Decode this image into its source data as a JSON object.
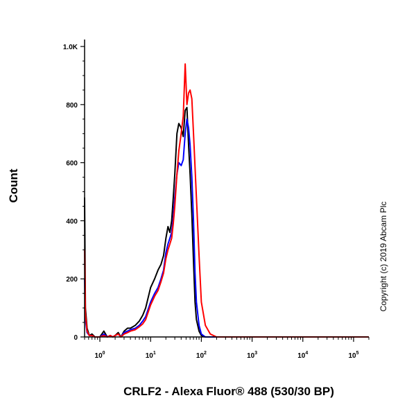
{
  "chart_data": {
    "type": "line",
    "title": "",
    "xlabel": "CRLF2 - Alexa Fluor® 488 (530/30 BP)",
    "ylabel": "Count",
    "xscale": "log",
    "xlim": [
      0.5,
      200000
    ],
    "ylim": [
      0,
      1024
    ],
    "grid": false,
    "legend": "none",
    "y_ticks": [
      {
        "value": 0,
        "label": "0"
      },
      {
        "value": 200,
        "label": "200"
      },
      {
        "value": 400,
        "label": "400"
      },
      {
        "value": 600,
        "label": "600"
      },
      {
        "value": 800,
        "label": "800"
      },
      {
        "value": 1000,
        "label": "1.0K"
      }
    ],
    "x_ticks": [
      {
        "value": 1,
        "base": "10",
        "exp": "0"
      },
      {
        "value": 10,
        "base": "10",
        "exp": "1"
      },
      {
        "value": 100,
        "base": "10",
        "exp": "2"
      },
      {
        "value": 1000,
        "base": "10",
        "exp": "3"
      },
      {
        "value": 10000,
        "base": "10",
        "exp": "4"
      },
      {
        "value": 100000,
        "base": "10",
        "exp": "5"
      }
    ],
    "series": [
      {
        "color": "#000000",
        "x": [
          0.5,
          0.52,
          0.56,
          0.62,
          0.7,
          0.8,
          0.9,
          1.0,
          1.2,
          1.4,
          1.6,
          1.8,
          2.0,
          2.3,
          2.6,
          3.0,
          3.5,
          4.0,
          5.0,
          6.0,
          7.0,
          8.0,
          10,
          12,
          14,
          16,
          18,
          20,
          22,
          24,
          26,
          28,
          30,
          33,
          36,
          40,
          44,
          48,
          52,
          56,
          60,
          65,
          70,
          75,
          80,
          90,
          100,
          120,
          150,
          1000,
          200000
        ],
        "y": [
          480,
          100,
          30,
          5,
          10,
          0,
          0,
          0,
          20,
          0,
          5,
          0,
          5,
          15,
          0,
          20,
          30,
          30,
          40,
          55,
          75,
          100,
          170,
          200,
          230,
          250,
          280,
          340,
          380,
          360,
          400,
          480,
          560,
          700,
          735,
          720,
          690,
          780,
          790,
          660,
          560,
          420,
          260,
          120,
          60,
          20,
          5,
          0,
          0,
          0,
          0
        ]
      },
      {
        "color": "#0000ff",
        "x": [
          0.5,
          0.52,
          0.56,
          0.62,
          0.7,
          0.8,
          0.9,
          1.0,
          1.2,
          1.4,
          1.6,
          1.8,
          2.0,
          2.3,
          2.6,
          3.0,
          3.5,
          4.0,
          5.0,
          6.0,
          7.0,
          8.0,
          10,
          12,
          14,
          16,
          18,
          20,
          22,
          24,
          26,
          28,
          30,
          33,
          36,
          40,
          44,
          48,
          52,
          56,
          60,
          65,
          70,
          75,
          80,
          90,
          100,
          120,
          150,
          1000,
          200000
        ],
        "y": [
          200,
          60,
          15,
          5,
          5,
          0,
          0,
          0,
          10,
          0,
          5,
          0,
          5,
          10,
          0,
          15,
          20,
          25,
          30,
          40,
          55,
          70,
          120,
          150,
          170,
          200,
          230,
          290,
          320,
          340,
          360,
          410,
          480,
          560,
          600,
          590,
          610,
          700,
          750,
          720,
          660,
          550,
          400,
          220,
          120,
          40,
          10,
          0,
          0,
          0,
          0
        ]
      },
      {
        "color": "#ff0000",
        "x": [
          0.5,
          0.52,
          0.56,
          0.62,
          0.7,
          0.8,
          0.9,
          1.0,
          1.2,
          1.4,
          1.6,
          1.8,
          2.0,
          2.3,
          2.6,
          3.0,
          3.5,
          4.0,
          5.0,
          6.0,
          7.0,
          8.0,
          10,
          12,
          14,
          16,
          18,
          20,
          22,
          24,
          26,
          28,
          30,
          33,
          36,
          40,
          44,
          48,
          52,
          56,
          60,
          65,
          70,
          80,
          90,
          100,
          120,
          150,
          200,
          300,
          1000,
          200000
        ],
        "y": [
          300,
          80,
          20,
          5,
          5,
          0,
          0,
          0,
          5,
          0,
          5,
          0,
          5,
          10,
          0,
          10,
          15,
          20,
          25,
          35,
          45,
          60,
          110,
          140,
          160,
          190,
          220,
          270,
          300,
          320,
          340,
          390,
          450,
          560,
          640,
          700,
          760,
          940,
          800,
          840,
          850,
          820,
          700,
          480,
          280,
          120,
          40,
          10,
          0,
          0,
          0,
          0
        ]
      }
    ]
  },
  "copyright": "Copyright (c) 2019 Abcam Plc"
}
